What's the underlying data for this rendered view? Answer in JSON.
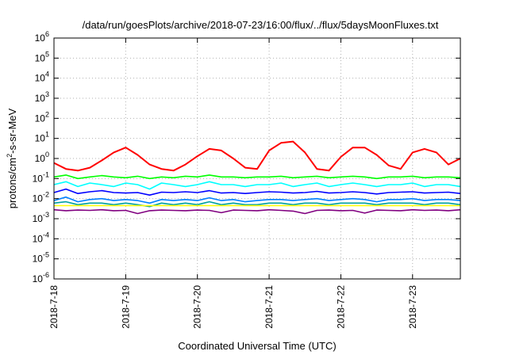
{
  "chart_data": {
    "type": "line",
    "title": "/data/run/goesPlots/archive/2018-07-23/16:00/flux/../flux/5daysMoonFluxes.txt",
    "xlabel": "Coordinated Universal Time (UTC)",
    "ylabel_prefix": "protons/cm",
    "ylabel_sup": "2",
    "ylabel_suffix": "-s-sr-MeV",
    "yscale": "log",
    "ylim": [
      1e-06,
      1000000.0
    ],
    "xlim": [
      "2018-07-18 00:00",
      "2018-07-23 16:00"
    ],
    "grid": true,
    "y_ticks": [
      {
        "value": 1e-06,
        "base": "10",
        "exp": "-6"
      },
      {
        "value": 1e-05,
        "base": "10",
        "exp": "-5"
      },
      {
        "value": 0.0001,
        "base": "10",
        "exp": "-4"
      },
      {
        "value": 0.001,
        "base": "10",
        "exp": "-3"
      },
      {
        "value": 0.01,
        "base": "10",
        "exp": "-2"
      },
      {
        "value": 0.1,
        "base": "10",
        "exp": "-1"
      },
      {
        "value": 1.0,
        "base": "10",
        "exp": "0"
      },
      {
        "value": 10.0,
        "base": "10",
        "exp": "1"
      },
      {
        "value": 100.0,
        "base": "10",
        "exp": "2"
      },
      {
        "value": 1000.0,
        "base": "10",
        "exp": "3"
      },
      {
        "value": 10000.0,
        "base": "10",
        "exp": "4"
      },
      {
        "value": 100000.0,
        "base": "10",
        "exp": "5"
      },
      {
        "value": 1000000.0,
        "base": "10",
        "exp": "6"
      }
    ],
    "x_ticks": [
      "2018-7-18",
      "2018-7-19",
      "2018-7-20",
      "2018-7-21",
      "2018-7-22",
      "2018-7-23"
    ],
    "x": [
      "2018-07-18 00:00",
      "2018-07-18 04:00",
      "2018-07-18 08:00",
      "2018-07-18 12:00",
      "2018-07-18 16:00",
      "2018-07-18 20:00",
      "2018-07-19 00:00",
      "2018-07-19 04:00",
      "2018-07-19 08:00",
      "2018-07-19 12:00",
      "2018-07-19 16:00",
      "2018-07-19 20:00",
      "2018-07-20 00:00",
      "2018-07-20 04:00",
      "2018-07-20 08:00",
      "2018-07-20 12:00",
      "2018-07-20 16:00",
      "2018-07-20 20:00",
      "2018-07-21 00:00",
      "2018-07-21 04:00",
      "2018-07-21 08:00",
      "2018-07-21 12:00",
      "2018-07-21 16:00",
      "2018-07-21 20:00",
      "2018-07-22 00:00",
      "2018-07-22 04:00",
      "2018-07-22 08:00",
      "2018-07-22 12:00",
      "2018-07-22 16:00",
      "2018-07-22 20:00",
      "2018-07-23 00:00",
      "2018-07-23 04:00",
      "2018-07-23 08:00",
      "2018-07-23 12:00",
      "2018-07-23 16:00"
    ],
    "series": [
      {
        "color": "#ff0000",
        "values": [
          0.6,
          0.3,
          0.25,
          0.35,
          0.8,
          2.0,
          3.5,
          1.5,
          0.5,
          0.3,
          0.25,
          0.5,
          1.3,
          3.0,
          2.5,
          1.0,
          0.35,
          0.3,
          2.5,
          6.0,
          7.0,
          2.0,
          0.3,
          0.25,
          1.2,
          3.5,
          3.5,
          1.5,
          0.45,
          0.3,
          2.0,
          3.0,
          2.0,
          0.5,
          1.0
        ]
      },
      {
        "color": "#00ff00",
        "values": [
          0.12,
          0.15,
          0.1,
          0.12,
          0.14,
          0.12,
          0.11,
          0.13,
          0.1,
          0.12,
          0.11,
          0.13,
          0.12,
          0.15,
          0.12,
          0.12,
          0.11,
          0.12,
          0.12,
          0.13,
          0.11,
          0.12,
          0.13,
          0.11,
          0.12,
          0.13,
          0.12,
          0.1,
          0.12,
          0.12,
          0.13,
          0.11,
          0.12,
          0.12,
          0.11
        ]
      },
      {
        "color": "#00ffff",
        "values": [
          0.05,
          0.07,
          0.04,
          0.06,
          0.05,
          0.04,
          0.06,
          0.05,
          0.03,
          0.06,
          0.05,
          0.04,
          0.05,
          0.07,
          0.05,
          0.05,
          0.04,
          0.05,
          0.05,
          0.06,
          0.04,
          0.05,
          0.06,
          0.04,
          0.05,
          0.06,
          0.05,
          0.04,
          0.05,
          0.05,
          0.06,
          0.04,
          0.05,
          0.05,
          0.04
        ]
      },
      {
        "color": "#0000ff",
        "values": [
          0.02,
          0.03,
          0.018,
          0.022,
          0.025,
          0.02,
          0.019,
          0.02,
          0.015,
          0.021,
          0.02,
          0.022,
          0.02,
          0.025,
          0.019,
          0.02,
          0.018,
          0.02,
          0.022,
          0.021,
          0.019,
          0.02,
          0.023,
          0.019,
          0.02,
          0.022,
          0.02,
          0.017,
          0.02,
          0.021,
          0.022,
          0.019,
          0.02,
          0.021,
          0.018
        ]
      },
      {
        "color": "#0080ff",
        "values": [
          0.008,
          0.012,
          0.007,
          0.009,
          0.01,
          0.008,
          0.009,
          0.008,
          0.006,
          0.009,
          0.008,
          0.009,
          0.008,
          0.011,
          0.008,
          0.009,
          0.007,
          0.008,
          0.009,
          0.009,
          0.008,
          0.009,
          0.01,
          0.008,
          0.009,
          0.01,
          0.009,
          0.007,
          0.009,
          0.009,
          0.01,
          0.008,
          0.009,
          0.009,
          0.008
        ]
      },
      {
        "color": "#00a0a0",
        "values": [
          0.006,
          0.007,
          0.005,
          0.006,
          0.006,
          0.005,
          0.006,
          0.005,
          0.004,
          0.006,
          0.005,
          0.006,
          0.005,
          0.007,
          0.005,
          0.006,
          0.005,
          0.005,
          0.006,
          0.006,
          0.005,
          0.006,
          0.006,
          0.005,
          0.006,
          0.006,
          0.006,
          0.005,
          0.006,
          0.006,
          0.006,
          0.005,
          0.006,
          0.006,
          0.005
        ]
      },
      {
        "color": "#ffff00",
        "values": [
          0.0045,
          0.0045,
          0.0045,
          0.0045,
          0.0045,
          0.0045,
          0.0045,
          0.0045,
          0.0045,
          0.0045,
          0.0045,
          0.0045,
          0.0045,
          0.0045,
          0.0045,
          0.0045,
          0.0045,
          0.0045,
          0.0045,
          0.0045,
          0.0045,
          0.0045,
          0.0045,
          0.0045,
          0.0045,
          0.0045,
          0.0045,
          0.0045,
          0.0045,
          0.0045,
          0.0045,
          0.0045,
          0.0045,
          0.0045,
          0.0045
        ]
      },
      {
        "color": "#800080",
        "values": [
          0.0028,
          0.0025,
          0.0027,
          0.0026,
          0.0028,
          0.0025,
          0.0026,
          0.0018,
          0.0025,
          0.0027,
          0.0026,
          0.0025,
          0.0027,
          0.0026,
          0.002,
          0.0027,
          0.0026,
          0.0025,
          0.0028,
          0.0026,
          0.0024,
          0.0018,
          0.0026,
          0.0027,
          0.0025,
          0.0026,
          0.0019,
          0.0027,
          0.0026,
          0.0025,
          0.0028,
          0.0026,
          0.0027,
          0.0025,
          0.0028
        ]
      }
    ]
  }
}
